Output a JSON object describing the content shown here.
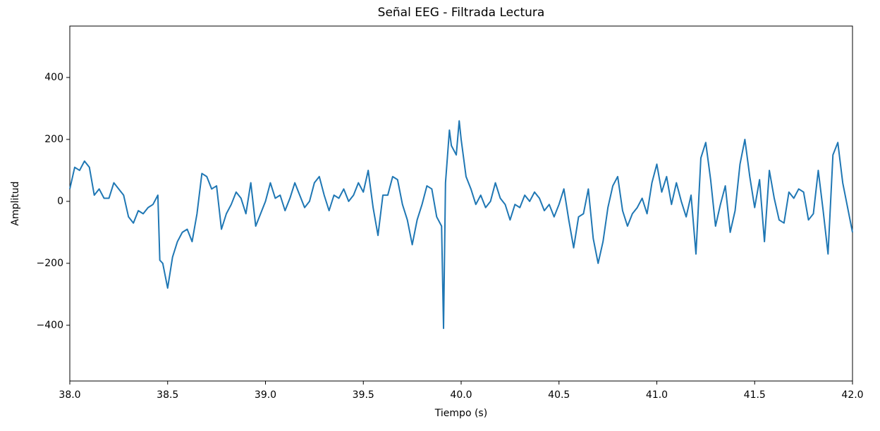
{
  "chart_data": {
    "type": "line",
    "title": "Señal EEG - Filtrada Lectura",
    "xlabel": "Tiempo (s)",
    "ylabel": "Amplitud",
    "xlim": [
      38,
      42
    ],
    "ylim": [
      -580,
      566
    ],
    "xticks": [
      {
        "value": 38,
        "label": "38.0"
      },
      38.5,
      {
        "value": 39,
        "label": "39.0"
      },
      39.5,
      {
        "value": 40,
        "label": "40.0"
      },
      40.5,
      {
        "value": 41,
        "label": "41.0"
      },
      41.5,
      {
        "value": 42,
        "label": "42.0"
      }
    ],
    "yticks": [
      {
        "value": -400,
        "label": "−400"
      },
      {
        "value": -200,
        "label": "−200"
      },
      0,
      200,
      400
    ],
    "grid": false,
    "series": [
      {
        "color": "#1f77b4",
        "x": [
          38.0,
          38.025,
          38.05,
          38.075,
          38.1,
          38.125,
          38.15,
          38.175,
          38.2,
          38.225,
          38.25,
          38.275,
          38.3,
          38.325,
          38.35,
          38.375,
          38.4,
          38.425,
          38.45,
          38.46,
          38.475,
          38.5,
          38.525,
          38.55,
          38.575,
          38.6,
          38.625,
          38.65,
          38.675,
          38.7,
          38.725,
          38.75,
          38.775,
          38.8,
          38.825,
          38.85,
          38.875,
          38.9,
          38.925,
          38.95,
          38.975,
          39.0,
          39.025,
          39.05,
          39.075,
          39.1,
          39.125,
          39.15,
          39.175,
          39.2,
          39.225,
          39.25,
          39.275,
          39.3,
          39.325,
          39.35,
          39.375,
          39.4,
          39.425,
          39.45,
          39.475,
          39.5,
          39.525,
          39.55,
          39.575,
          39.6,
          39.625,
          39.65,
          39.675,
          39.7,
          39.725,
          39.75,
          39.775,
          39.8,
          39.825,
          39.85,
          39.875,
          39.9,
          39.91,
          39.92,
          39.94,
          39.95,
          39.975,
          39.99,
          40.0,
          40.025,
          40.05,
          40.075,
          40.1,
          40.125,
          40.15,
          40.175,
          40.2,
          40.225,
          40.25,
          40.275,
          40.3,
          40.325,
          40.35,
          40.375,
          40.4,
          40.425,
          40.45,
          40.475,
          40.5,
          40.525,
          40.55,
          40.575,
          40.6,
          40.625,
          40.65,
          40.675,
          40.7,
          40.725,
          40.75,
          40.775,
          40.8,
          40.825,
          40.85,
          40.875,
          40.9,
          40.925,
          40.95,
          40.975,
          41.0,
          41.025,
          41.05,
          41.075,
          41.1,
          41.125,
          41.15,
          41.175,
          41.2,
          41.225,
          41.25,
          41.275,
          41.3,
          41.325,
          41.35,
          41.375,
          41.4,
          41.425,
          41.45,
          41.475,
          41.5,
          41.525,
          41.55,
          41.575,
          41.6,
          41.625,
          41.65,
          41.675,
          41.7,
          41.725,
          41.75,
          41.775,
          41.8,
          41.825,
          41.85,
          41.875,
          41.9,
          41.925,
          41.95,
          41.975,
          42.0
        ],
        "values": [
          40,
          110,
          100,
          130,
          110,
          20,
          40,
          10,
          10,
          60,
          40,
          20,
          -50,
          -70,
          -30,
          -40,
          -20,
          -10,
          20,
          -190,
          -200,
          -280,
          -180,
          -130,
          -100,
          -90,
          -130,
          -40,
          90,
          80,
          40,
          50,
          -90,
          -40,
          -10,
          30,
          10,
          -40,
          60,
          -80,
          -40,
          0,
          60,
          10,
          20,
          -30,
          10,
          60,
          20,
          -20,
          0,
          60,
          80,
          20,
          -30,
          20,
          10,
          40,
          0,
          20,
          60,
          30,
          100,
          -20,
          -110,
          20,
          20,
          80,
          70,
          -10,
          -60,
          -140,
          -60,
          -10,
          50,
          40,
          -50,
          -80,
          -410,
          60,
          230,
          180,
          150,
          260,
          200,
          80,
          40,
          -10,
          20,
          -20,
          0,
          60,
          10,
          -10,
          -60,
          -10,
          -20,
          20,
          0,
          30,
          10,
          -30,
          -10,
          -50,
          -10,
          40,
          -60,
          -150,
          -50,
          -40,
          40,
          -120,
          -200,
          -130,
          -20,
          50,
          80,
          -30,
          -80,
          -40,
          -20,
          10,
          -40,
          60,
          120,
          30,
          80,
          -10,
          60,
          0,
          -50,
          20,
          -170,
          140,
          190,
          70,
          -80,
          -10,
          50,
          -100,
          -30,
          120,
          200,
          80,
          -20,
          70,
          -130,
          100,
          10,
          -60,
          -70,
          30,
          10,
          40,
          30,
          -60,
          -40,
          100,
          -30,
          -170,
          150,
          190,
          60,
          -20,
          -100
        ]
      }
    ]
  }
}
